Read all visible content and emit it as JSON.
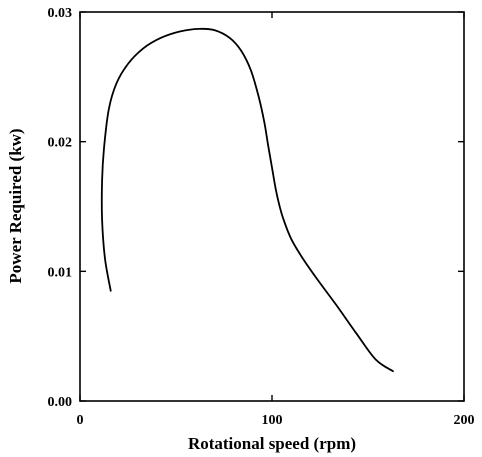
{
  "chart_data": {
    "type": "line",
    "title": "",
    "xlabel": "Rotational speed (rpm)",
    "ylabel": "Power Required (kw)",
    "xlim": [
      0,
      200
    ],
    "ylim": [
      0,
      0.03
    ],
    "x_ticks": [
      0,
      100,
      200
    ],
    "x_tick_labels": [
      "0",
      "100",
      "200"
    ],
    "y_ticks": [
      0,
      0.01,
      0.02,
      0.03
    ],
    "y_tick_labels": [
      "0.00",
      "0.01",
      "0.02",
      "0.03"
    ],
    "grid": false,
    "legend": "none",
    "series": [
      {
        "x": [
          16,
          13,
          11.5,
          11.5,
          12.5,
          15,
          19,
          25,
          33,
          42,
          52,
          62,
          70,
          78,
          84,
          89,
          93,
          96,
          98,
          100,
          102,
          104,
          106,
          110,
          116,
          124,
          134,
          144,
          154,
          163
        ],
        "y": [
          0.0085,
          0.011,
          0.014,
          0.017,
          0.0195,
          0.0225,
          0.0245,
          0.026,
          0.0272,
          0.028,
          0.0285,
          0.0287,
          0.0286,
          0.028,
          0.027,
          0.0255,
          0.0235,
          0.0215,
          0.0197,
          0.018,
          0.0163,
          0.015,
          0.014,
          0.0125,
          0.011,
          0.0093,
          0.0073,
          0.0052,
          0.0032,
          0.0023
        ]
      }
    ]
  }
}
